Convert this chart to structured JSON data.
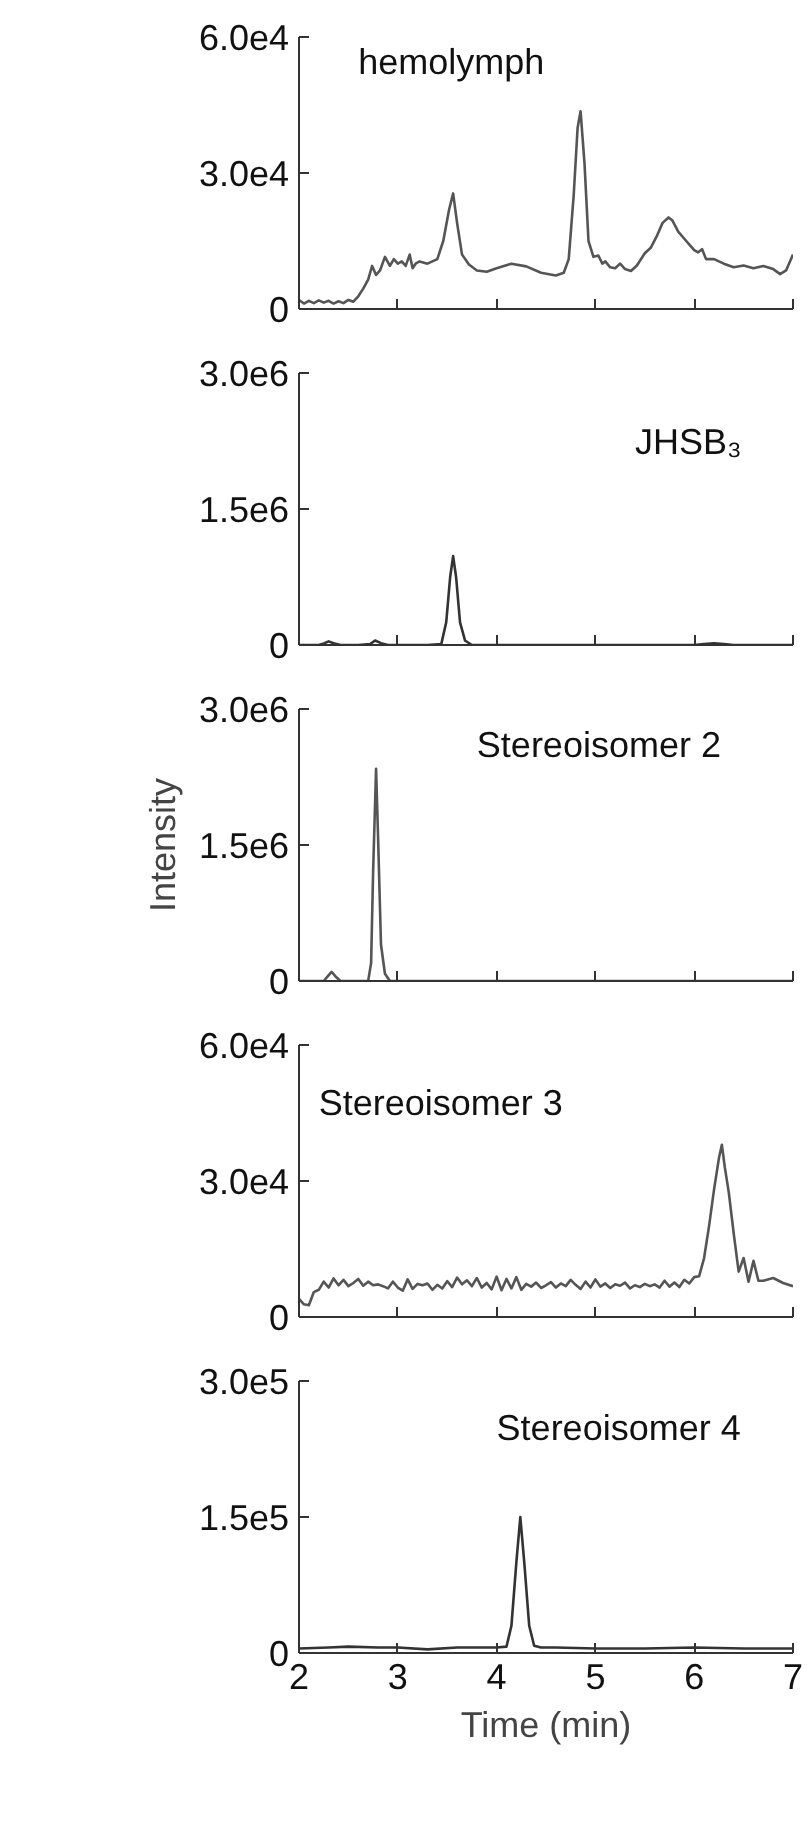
{
  "chart_data": [
    {
      "type": "line",
      "title": "hemolymph",
      "xlim": [
        2,
        7
      ],
      "xticks": [
        2,
        3,
        4,
        5,
        6,
        7
      ],
      "ylim": [
        0,
        60000
      ],
      "yticks": [
        0,
        {
          "value": 30000,
          "label": "3.0e4"
        },
        {
          "value": 60000,
          "label": "6.0e4"
        }
      ],
      "tick_labels": "y",
      "grid": false,
      "x": [
        2.0,
        2.05,
        2.1,
        2.15,
        2.2,
        2.25,
        2.3,
        2.35,
        2.4,
        2.45,
        2.5,
        2.55,
        2.6,
        2.65,
        2.7,
        2.74,
        2.78,
        2.82,
        2.87,
        2.92,
        2.96,
        3.0,
        3.04,
        3.08,
        3.12,
        3.15,
        3.18,
        3.22,
        3.3,
        3.4,
        3.46,
        3.52,
        3.56,
        3.6,
        3.65,
        3.72,
        3.8,
        3.9,
        4.0,
        4.15,
        4.3,
        4.45,
        4.6,
        4.68,
        4.73,
        4.78,
        4.82,
        4.85,
        4.89,
        4.93,
        4.98,
        5.03,
        5.07,
        5.1,
        5.15,
        5.2,
        5.25,
        5.3,
        5.36,
        5.42,
        5.5,
        5.56,
        5.62,
        5.68,
        5.74,
        5.78,
        5.84,
        5.9,
        5.96,
        6.0,
        6.04,
        6.08,
        6.12,
        6.2,
        6.3,
        6.4,
        6.5,
        6.6,
        6.7,
        6.8,
        6.87,
        6.93,
        7.0
      ],
      "series": [
        {
          "color": "#555555",
          "values": [
            2000,
            1200,
            1800,
            1300,
            1900,
            1400,
            1800,
            1200,
            1700,
            1300,
            2000,
            1600,
            2800,
            4500,
            6500,
            9500,
            7500,
            8500,
            11500,
            9500,
            11000,
            10000,
            10500,
            9500,
            12000,
            9000,
            10000,
            10500,
            10000,
            11000,
            15000,
            22000,
            25500,
            19000,
            12000,
            9800,
            8500,
            8200,
            9000,
            10000,
            9400,
            8000,
            7400,
            8000,
            11000,
            25000,
            40000,
            43600,
            32000,
            15000,
            11500,
            11800,
            10000,
            10500,
            9200,
            9000,
            10000,
            8800,
            8400,
            9600,
            12300,
            13500,
            16000,
            19000,
            20200,
            19500,
            17000,
            15500,
            14000,
            13000,
            12500,
            13200,
            11000,
            11000,
            10000,
            9200,
            9600,
            9000,
            9500,
            8800,
            7700,
            8500,
            12000
          ]
        }
      ]
    },
    {
      "type": "line",
      "title": "JHSB₃",
      "xlim": [
        2,
        7
      ],
      "xticks": [
        2,
        3,
        4,
        5,
        6,
        7
      ],
      "ylim": [
        0,
        3000000
      ],
      "yticks": [
        0,
        {
          "value": 1500000,
          "label": "1.5e6"
        },
        {
          "value": 3000000,
          "label": "3.0e6"
        }
      ],
      "tick_labels": "y",
      "grid": false,
      "x": [
        2.0,
        2.2,
        2.26,
        2.3,
        2.35,
        2.42,
        2.6,
        2.72,
        2.77,
        2.83,
        2.9,
        3.0,
        3.3,
        3.44,
        3.49,
        3.53,
        3.56,
        3.59,
        3.63,
        3.68,
        3.75,
        3.9,
        4.5,
        5.5,
        6.0,
        6.1,
        6.2,
        6.3,
        6.4,
        7.0
      ],
      "series": [
        {
          "color": "#333333",
          "values": [
            0,
            0,
            20000,
            40000,
            20000,
            0,
            0,
            10000,
            50000,
            20000,
            0,
            0,
            0,
            10000,
            250000,
            750000,
            980000,
            750000,
            250000,
            50000,
            0,
            0,
            0,
            0,
            0,
            10000,
            20000,
            10000,
            0,
            0
          ]
        }
      ]
    },
    {
      "type": "line",
      "title": "Stereoisomer 2",
      "ylabel": "Intensity",
      "xlim": [
        2,
        7
      ],
      "xticks": [
        2,
        3,
        4,
        5,
        6,
        7
      ],
      "ylim": [
        0,
        3000000
      ],
      "yticks": [
        0,
        {
          "value": 1500000,
          "label": "1.5e6"
        },
        {
          "value": 3000000,
          "label": "3.0e6"
        }
      ],
      "tick_labels": "y",
      "grid": false,
      "x": [
        2.0,
        2.25,
        2.29,
        2.33,
        2.37,
        2.42,
        2.7,
        2.73,
        2.75,
        2.78,
        2.8,
        2.83,
        2.87,
        2.92,
        3.0,
        7.0
      ],
      "series": [
        {
          "color": "#555555",
          "values": [
            0,
            0,
            50000,
            100000,
            50000,
            0,
            0,
            200000,
            1200000,
            2340000,
            1600000,
            400000,
            80000,
            0,
            0,
            0
          ]
        }
      ]
    },
    {
      "type": "line",
      "title": "Stereoisomer 3",
      "xlim": [
        2,
        7
      ],
      "xticks": [
        2,
        3,
        4,
        5,
        6,
        7
      ],
      "ylim": [
        0,
        60000
      ],
      "yticks": [
        0,
        {
          "value": 30000,
          "label": "3.0e4"
        },
        {
          "value": 60000,
          "label": "6.0e4"
        }
      ],
      "tick_labels": "y",
      "grid": false,
      "x": [
        2.0,
        2.05,
        2.1,
        2.15,
        2.2,
        2.25,
        2.3,
        2.35,
        2.4,
        2.45,
        2.5,
        2.55,
        2.6,
        2.65,
        2.7,
        2.75,
        2.8,
        2.85,
        2.9,
        2.95,
        3.0,
        3.05,
        3.1,
        3.15,
        3.2,
        3.25,
        3.3,
        3.35,
        3.4,
        3.45,
        3.5,
        3.55,
        3.6,
        3.65,
        3.7,
        3.75,
        3.8,
        3.85,
        3.9,
        3.95,
        4.0,
        4.05,
        4.1,
        4.15,
        4.2,
        4.25,
        4.3,
        4.35,
        4.4,
        4.45,
        4.5,
        4.55,
        4.6,
        4.65,
        4.7,
        4.75,
        4.8,
        4.85,
        4.9,
        4.95,
        5.0,
        5.05,
        5.1,
        5.15,
        5.2,
        5.25,
        5.3,
        5.35,
        5.4,
        5.45,
        5.5,
        5.55,
        5.6,
        5.65,
        5.7,
        5.75,
        5.8,
        5.85,
        5.9,
        5.95,
        6.0,
        6.05,
        6.1,
        6.15,
        6.2,
        6.25,
        6.28,
        6.31,
        6.35,
        6.4,
        6.45,
        6.5,
        6.55,
        6.6,
        6.65,
        6.7,
        6.8,
        6.9,
        7.0
      ],
      "series": [
        {
          "color": "#555555",
          "values": [
            4000,
            2800,
            2600,
            5500,
            6000,
            7800,
            6500,
            8500,
            7000,
            8200,
            6800,
            7500,
            8400,
            6900,
            7800,
            7000,
            7200,
            6800,
            6300,
            7800,
            6500,
            5800,
            8300,
            6200,
            7300,
            7000,
            7400,
            6000,
            7100,
            6300,
            7900,
            6600,
            8700,
            7200,
            8100,
            6800,
            8600,
            6500,
            7500,
            6100,
            8900,
            5900,
            8400,
            6300,
            8800,
            6000,
            7300,
            6700,
            7600,
            6400,
            7000,
            7700,
            6500,
            7400,
            6800,
            8200,
            7100,
            6200,
            7800,
            6500,
            8300,
            6700,
            7400,
            6400,
            7200,
            6900,
            7600,
            6300,
            7000,
            6600,
            7300,
            6800,
            7200,
            6500,
            8000,
            6700,
            7600,
            6600,
            8200,
            7400,
            8800,
            9000,
            13000,
            20000,
            28000,
            35000,
            38000,
            33000,
            27500,
            18400,
            10000,
            13000,
            7800,
            12400,
            8000,
            8000,
            8600,
            7500,
            6800
          ]
        }
      ]
    },
    {
      "type": "line",
      "title": "Stereoisomer 4",
      "xlabel": "Time (min)",
      "xlim": [
        2,
        7
      ],
      "xticks": [
        2,
        3,
        4,
        5,
        6,
        7
      ],
      "ylim": [
        0,
        300000
      ],
      "yticks": [
        0,
        {
          "value": 150000,
          "label": "1.5e5"
        },
        {
          "value": 300000,
          "label": "3.0e5"
        }
      ],
      "grid": false,
      "x": [
        2.0,
        2.3,
        2.5,
        2.8,
        3.0,
        3.3,
        3.6,
        4.0,
        4.1,
        4.15,
        4.2,
        4.24,
        4.28,
        4.33,
        4.38,
        4.45,
        4.6,
        5.0,
        5.5,
        6.0,
        6.5,
        7.0
      ],
      "series": [
        {
          "color": "#333333",
          "values": [
            5000,
            6000,
            7000,
            6000,
            6000,
            4000,
            6000,
            6000,
            7000,
            30000,
            100000,
            150000,
            100000,
            30000,
            8000,
            6000,
            6000,
            5000,
            5000,
            6000,
            5000,
            5000
          ]
        }
      ]
    }
  ]
}
